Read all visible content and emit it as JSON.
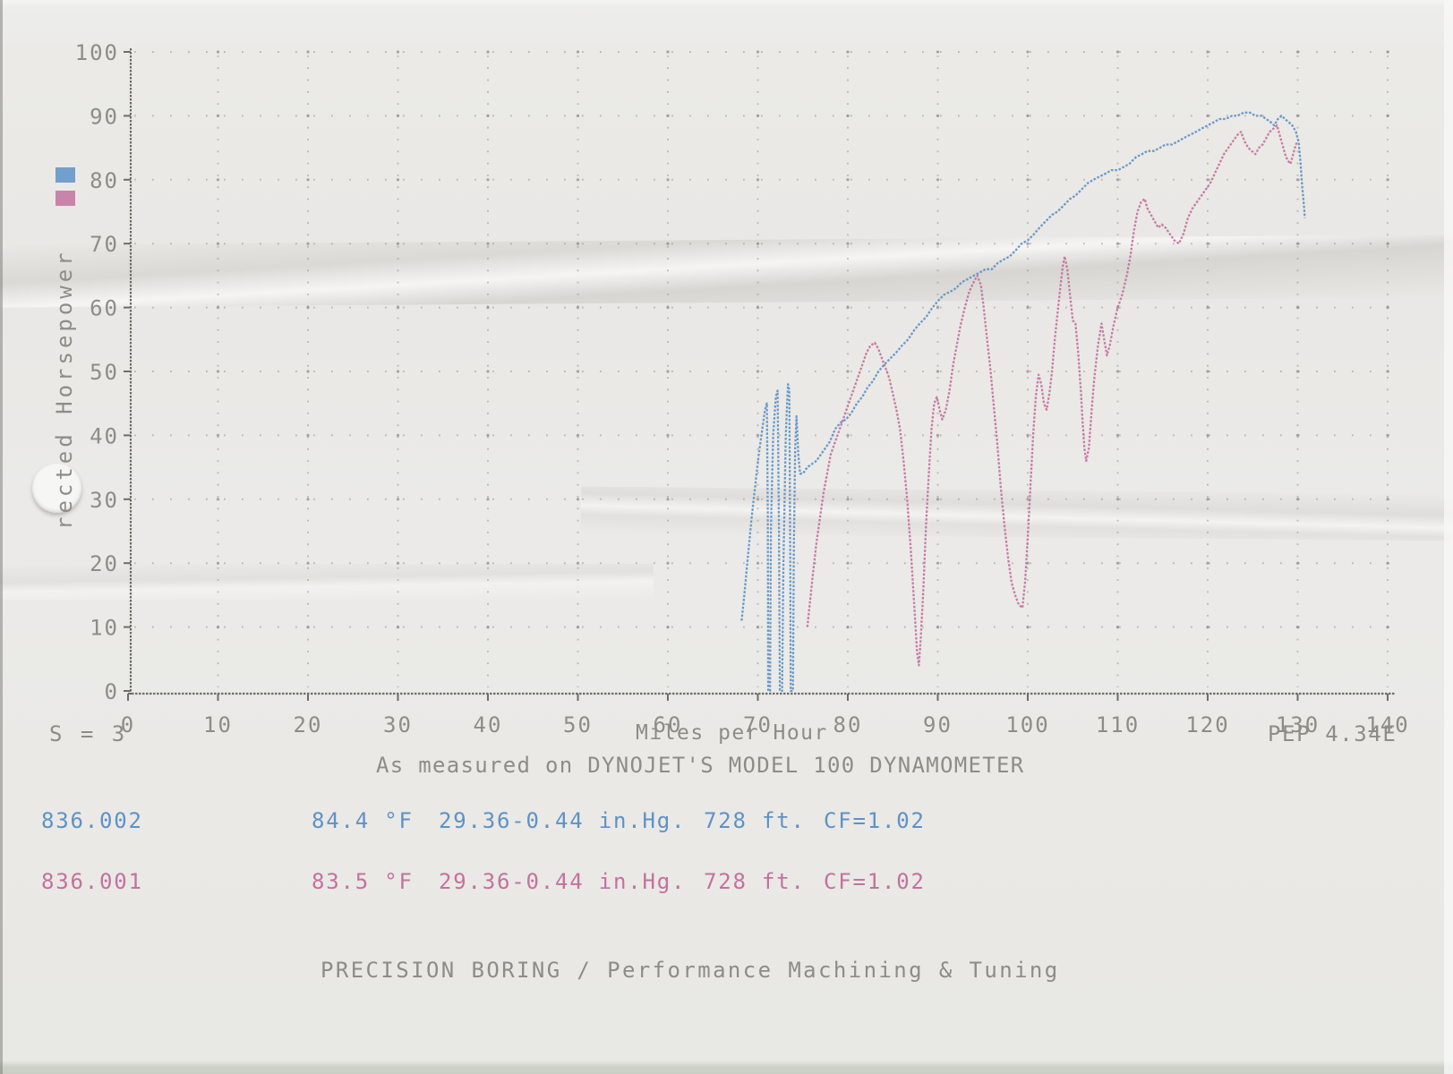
{
  "text": {
    "y_axis_label": "rected Horsepower",
    "s_value": "S = 3",
    "x_axis_title": "Miles per Hour",
    "pep_version": "PEP 4.34E",
    "subtitle": "As measured on DYNOJET'S MODEL 100 DYNAMOMETER",
    "footer": "PRECISION BORING / Performance Machining & Tuning"
  },
  "colors": {
    "run1_blue": "#5e92c5",
    "run2_pink": "#c4719e",
    "grid_dot": "#8c8c85",
    "axis": "#6e6e66",
    "print_text": "#8d8d86",
    "paper": "#ebeae7"
  },
  "runs": [
    {
      "id": "836.002",
      "temperature": "84.4 °F",
      "pressure": "29.36-0.44 in.Hg.",
      "altitude": "728 ft.",
      "correction": "CF=1.02",
      "color": "#5e92c5"
    },
    {
      "id": "836.001",
      "temperature": "83.5 °F",
      "pressure": "29.36-0.44 in.Hg.",
      "altitude": "728 ft.",
      "correction": "CF=1.02",
      "color": "#c4719e"
    }
  ],
  "chart_data": {
    "type": "line",
    "xlabel": "Miles per Hour",
    "ylabel": "rected Horsepower",
    "xlim": [
      0,
      140
    ],
    "ylim": [
      0,
      100
    ],
    "xticks": [
      0,
      10,
      20,
      30,
      40,
      50,
      60,
      70,
      80,
      90,
      100,
      110,
      120,
      130,
      140
    ],
    "yticks": [
      0,
      10,
      20,
      30,
      40,
      50,
      60,
      70,
      80,
      90,
      100
    ],
    "grid": true,
    "legend_position": "left-margin-swatches",
    "series": [
      {
        "name": "836.002",
        "color": "#5e92c5",
        "points": [
          [
            68.2,
            11
          ],
          [
            68.5,
            15
          ],
          [
            68.9,
            21
          ],
          [
            69.3,
            27
          ],
          [
            69.7,
            32
          ],
          [
            70.1,
            37
          ],
          [
            70.5,
            41
          ],
          [
            70.8,
            44
          ],
          [
            71.0,
            45
          ],
          [
            71.1,
            28
          ],
          [
            71.15,
            0
          ],
          [
            71.35,
            0
          ],
          [
            71.45,
            25
          ],
          [
            71.7,
            40
          ],
          [
            72.0,
            46
          ],
          [
            72.2,
            47
          ],
          [
            72.35,
            25
          ],
          [
            72.45,
            0
          ],
          [
            72.7,
            0
          ],
          [
            72.85,
            20
          ],
          [
            73.1,
            40
          ],
          [
            73.35,
            48
          ],
          [
            73.5,
            47
          ],
          [
            73.6,
            20
          ],
          [
            73.65,
            0
          ],
          [
            73.9,
            0
          ],
          [
            74.0,
            22
          ],
          [
            74.15,
            38
          ],
          [
            74.3,
            43
          ],
          [
            74.5,
            37
          ],
          [
            74.7,
            34
          ],
          [
            75.0,
            34
          ],
          [
            75.5,
            35
          ],
          [
            76.0,
            35.5
          ],
          [
            76.5,
            36
          ],
          [
            77.0,
            37
          ],
          [
            77.5,
            38
          ],
          [
            78.0,
            39
          ],
          [
            78.6,
            41
          ],
          [
            79.2,
            42
          ],
          [
            79.8,
            42.5
          ],
          [
            80.4,
            43.5
          ],
          [
            81.0,
            45
          ],
          [
            81.6,
            46
          ],
          [
            82.2,
            47.5
          ],
          [
            82.8,
            48.5
          ],
          [
            83.4,
            50
          ],
          [
            84.0,
            51
          ],
          [
            84.7,
            52
          ],
          [
            85.4,
            53
          ],
          [
            86.0,
            54
          ],
          [
            86.7,
            55
          ],
          [
            87.4,
            56.5
          ],
          [
            88.0,
            57.5
          ],
          [
            88.7,
            58.5
          ],
          [
            89.4,
            60
          ],
          [
            90.0,
            61
          ],
          [
            90.7,
            62
          ],
          [
            91.4,
            62.5
          ],
          [
            92.0,
            63
          ],
          [
            92.7,
            64
          ],
          [
            93.4,
            64.5
          ],
          [
            94.0,
            65
          ],
          [
            94.7,
            65.5
          ],
          [
            95.3,
            66
          ],
          [
            96.0,
            66
          ],
          [
            96.7,
            67
          ],
          [
            97.3,
            67.5
          ],
          [
            98.0,
            68
          ],
          [
            98.7,
            69
          ],
          [
            99.3,
            70
          ],
          [
            100,
            70.5
          ],
          [
            100.7,
            71.5
          ],
          [
            101.3,
            72.5
          ],
          [
            102,
            73.5
          ],
          [
            102.7,
            74.5
          ],
          [
            103.3,
            75
          ],
          [
            104,
            76
          ],
          [
            104.7,
            77
          ],
          [
            105.3,
            77.5
          ],
          [
            106,
            78.5
          ],
          [
            106.7,
            79.5
          ],
          [
            107.3,
            80
          ],
          [
            108,
            80.5
          ],
          [
            108.7,
            81
          ],
          [
            109.3,
            81.5
          ],
          [
            110,
            81.5
          ],
          [
            110.7,
            82
          ],
          [
            111.3,
            82.5
          ],
          [
            112,
            83.5
          ],
          [
            112.7,
            84
          ],
          [
            113.3,
            84.5
          ],
          [
            114,
            84.5
          ],
          [
            114.7,
            85
          ],
          [
            115.3,
            85.5
          ],
          [
            116,
            85.5
          ],
          [
            116.7,
            86
          ],
          [
            117.3,
            86.5
          ],
          [
            118,
            87
          ],
          [
            118.7,
            87.5
          ],
          [
            119.3,
            88
          ],
          [
            120,
            88.5
          ],
          [
            120.7,
            89
          ],
          [
            121.3,
            89.5
          ],
          [
            122,
            89.5
          ],
          [
            122.7,
            90
          ],
          [
            123.3,
            90
          ],
          [
            124,
            90.5
          ],
          [
            124.7,
            90.5
          ],
          [
            125.3,
            90
          ],
          [
            126,
            90
          ],
          [
            126.5,
            89.5
          ],
          [
            127,
            89
          ],
          [
            127.4,
            88.5
          ],
          [
            127.8,
            89.5
          ],
          [
            128.2,
            90
          ],
          [
            128.6,
            89.5
          ],
          [
            129,
            89
          ],
          [
            129.4,
            88.5
          ],
          [
            129.8,
            87.5
          ],
          [
            130.1,
            86
          ],
          [
            130.3,
            83
          ],
          [
            130.5,
            79
          ],
          [
            130.7,
            76
          ],
          [
            130.8,
            74
          ]
        ]
      },
      {
        "name": "836.001",
        "color": "#c4719e",
        "points": [
          [
            75.5,
            10
          ],
          [
            75.8,
            14
          ],
          [
            76.1,
            18
          ],
          [
            76.5,
            23
          ],
          [
            76.9,
            27
          ],
          [
            77.3,
            31
          ],
          [
            77.7,
            34
          ],
          [
            78.1,
            37
          ],
          [
            78.6,
            39
          ],
          [
            79.1,
            41
          ],
          [
            79.6,
            43
          ],
          [
            80.1,
            45
          ],
          [
            80.6,
            47
          ],
          [
            81.1,
            49
          ],
          [
            81.6,
            51
          ],
          [
            82.1,
            53
          ],
          [
            82.5,
            54
          ],
          [
            83.0,
            54.5
          ],
          [
            83.4,
            53.5
          ],
          [
            83.8,
            52
          ],
          [
            84.2,
            50.5
          ],
          [
            84.6,
            49
          ],
          [
            85.0,
            46.5
          ],
          [
            85.4,
            44
          ],
          [
            85.8,
            41
          ],
          [
            86.2,
            36
          ],
          [
            86.6,
            30
          ],
          [
            87.0,
            22
          ],
          [
            87.4,
            13
          ],
          [
            87.7,
            6
          ],
          [
            87.9,
            4
          ],
          [
            88.1,
            8
          ],
          [
            88.4,
            16
          ],
          [
            88.7,
            26
          ],
          [
            89.0,
            34
          ],
          [
            89.3,
            41
          ],
          [
            89.6,
            45
          ],
          [
            89.9,
            46
          ],
          [
            90.2,
            44
          ],
          [
            90.5,
            42.5
          ],
          [
            90.9,
            44
          ],
          [
            91.3,
            47
          ],
          [
            91.7,
            51
          ],
          [
            92.1,
            54
          ],
          [
            92.5,
            57
          ],
          [
            93.0,
            60
          ],
          [
            93.5,
            62.5
          ],
          [
            94.0,
            64
          ],
          [
            94.4,
            65
          ],
          [
            94.8,
            63.5
          ],
          [
            95.1,
            60
          ],
          [
            95.4,
            56
          ],
          [
            95.8,
            51
          ],
          [
            96.2,
            45
          ],
          [
            96.6,
            39
          ],
          [
            97.0,
            32
          ],
          [
            97.4,
            26
          ],
          [
            97.8,
            21
          ],
          [
            98.2,
            17
          ],
          [
            98.6,
            15
          ],
          [
            99.0,
            13.5
          ],
          [
            99.4,
            13
          ],
          [
            99.7,
            17
          ],
          [
            100.0,
            24
          ],
          [
            100.3,
            32
          ],
          [
            100.6,
            40
          ],
          [
            100.9,
            46
          ],
          [
            101.2,
            49.5
          ],
          [
            101.5,
            48
          ],
          [
            101.8,
            45
          ],
          [
            102.1,
            44
          ],
          [
            102.4,
            46.5
          ],
          [
            102.7,
            50
          ],
          [
            103.0,
            55
          ],
          [
            103.3,
            59
          ],
          [
            103.6,
            63
          ],
          [
            103.9,
            66.5
          ],
          [
            104.1,
            68
          ],
          [
            104.4,
            66
          ],
          [
            104.7,
            62
          ],
          [
            105.0,
            58
          ],
          [
            105.3,
            57.5
          ],
          [
            105.6,
            53
          ],
          [
            105.9,
            47
          ],
          [
            106.1,
            42
          ],
          [
            106.3,
            38
          ],
          [
            106.5,
            36
          ],
          [
            106.8,
            38
          ],
          [
            107.1,
            44
          ],
          [
            107.4,
            49
          ],
          [
            107.8,
            54
          ],
          [
            108.2,
            57.5
          ],
          [
            108.5,
            55
          ],
          [
            108.8,
            52.5
          ],
          [
            109.1,
            54
          ],
          [
            109.5,
            57
          ],
          [
            110.0,
            60
          ],
          [
            110.5,
            62
          ],
          [
            111.0,
            65
          ],
          [
            111.4,
            68
          ],
          [
            111.8,
            72
          ],
          [
            112.2,
            75
          ],
          [
            112.6,
            76.5
          ],
          [
            113.0,
            77
          ],
          [
            113.3,
            75.5
          ],
          [
            113.7,
            74.5
          ],
          [
            114.1,
            73.5
          ],
          [
            114.5,
            72.5
          ],
          [
            114.9,
            73
          ],
          [
            115.3,
            72.5
          ],
          [
            115.8,
            71.5
          ],
          [
            116.3,
            70.5
          ],
          [
            116.8,
            70
          ],
          [
            117.3,
            71.5
          ],
          [
            117.8,
            74
          ],
          [
            118.3,
            75.5
          ],
          [
            118.8,
            76.5
          ],
          [
            119.3,
            77.5
          ],
          [
            119.8,
            78.5
          ],
          [
            120.3,
            79.5
          ],
          [
            120.8,
            81
          ],
          [
            121.3,
            82.5
          ],
          [
            121.8,
            84
          ],
          [
            122.3,
            85
          ],
          [
            122.8,
            86
          ],
          [
            123.3,
            87
          ],
          [
            123.7,
            87.5
          ],
          [
            124.1,
            86
          ],
          [
            124.5,
            85
          ],
          [
            124.9,
            84.5
          ],
          [
            125.3,
            84
          ],
          [
            125.7,
            85
          ],
          [
            126.1,
            85.5
          ],
          [
            126.5,
            86.5
          ],
          [
            126.9,
            87.5
          ],
          [
            127.3,
            88
          ],
          [
            127.7,
            88.5
          ],
          [
            128.0,
            87
          ],
          [
            128.3,
            85.5
          ],
          [
            128.6,
            84
          ],
          [
            128.9,
            83
          ],
          [
            129.2,
            82.5
          ],
          [
            129.5,
            84
          ],
          [
            129.8,
            85.5
          ],
          [
            130.0,
            86
          ]
        ]
      }
    ]
  }
}
